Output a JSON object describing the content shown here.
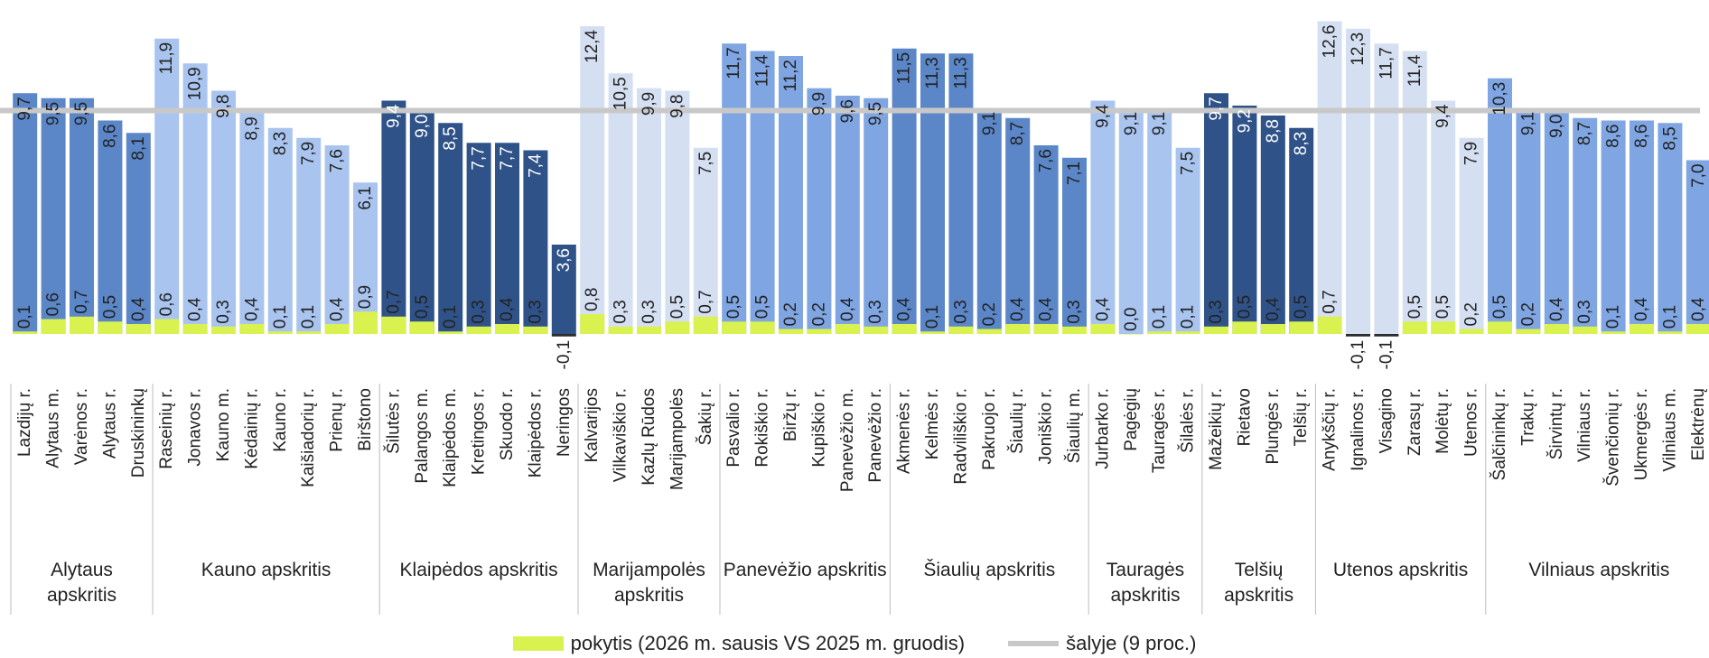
{
  "chart_data": {
    "type": "bar",
    "reference": {
      "label": "šalyje (9 proc.)",
      "value": 9,
      "color": "#c8c8c8"
    },
    "change_series": {
      "label": "pokytis (2026 m. sausis VS 2025 m. gruodis)",
      "color": "#d9f24f"
    },
    "ylim": [
      -0.2,
      12.8
    ],
    "groups": [
      {
        "name": "Alytaus apskritis",
        "color": "#5b87c9",
        "items": [
          {
            "label": "Lazdijų r.",
            "value": 9.7,
            "change": 0.1
          },
          {
            "label": "Alytaus m.",
            "value": 9.5,
            "change": 0.6
          },
          {
            "label": "Varėnos r.",
            "value": 9.5,
            "change": 0.7
          },
          {
            "label": "Alytaus r.",
            "value": 8.6,
            "change": 0.5
          },
          {
            "label": "Druskininkų",
            "value": 8.1,
            "change": 0.4
          }
        ]
      },
      {
        "name": "Kauno apskritis",
        "color": "#a9c4ef",
        "items": [
          {
            "label": "Raseinių r.",
            "value": 11.9,
            "change": 0.6
          },
          {
            "label": "Jonavos r.",
            "value": 10.9,
            "change": 0.4
          },
          {
            "label": "Kauno m.",
            "value": 9.8,
            "change": 0.3
          },
          {
            "label": "Kėdainių r.",
            "value": 8.9,
            "change": 0.4
          },
          {
            "label": "Kauno r.",
            "value": 8.3,
            "change": 0.1
          },
          {
            "label": "Kaišiadorių r.",
            "value": 7.9,
            "change": 0.1
          },
          {
            "label": "Prienų r.",
            "value": 7.6,
            "change": 0.4
          },
          {
            "label": "Birštono",
            "value": 6.1,
            "change": 0.9
          }
        ]
      },
      {
        "name": "Klaipėdos apskritis",
        "color": "#2f5389",
        "items": [
          {
            "label": "Šilutės r.",
            "value": 9.4,
            "change": 0.7
          },
          {
            "label": "Palangos m.",
            "value": 9.0,
            "change": 0.5
          },
          {
            "label": "Klaipėdos m.",
            "value": 8.5,
            "change": 0.1
          },
          {
            "label": "Kretingos r.",
            "value": 7.7,
            "change": 0.3
          },
          {
            "label": "Skuodo r.",
            "value": 7.7,
            "change": 0.4
          },
          {
            "label": "Klaipėdos r.",
            "value": 7.4,
            "change": 0.3
          },
          {
            "label": "Neringos",
            "value": 3.6,
            "change": -0.1
          }
        ]
      },
      {
        "name": "Marijampolės apskritis",
        "color": "#d5dff2",
        "items": [
          {
            "label": "Kalvarijos",
            "value": 12.4,
            "change": 0.8
          },
          {
            "label": "Vilkaviškio r.",
            "value": 10.5,
            "change": 0.3
          },
          {
            "label": "Kazlų Rūdos",
            "value": 9.9,
            "change": 0.3
          },
          {
            "label": "Marijampolės",
            "value": 9.8,
            "change": 0.5
          },
          {
            "label": "Šakių r.",
            "value": 7.5,
            "change": 0.7
          }
        ]
      },
      {
        "name": "Panevėžio apskritis",
        "color": "#7fa6e3",
        "items": [
          {
            "label": "Pasvalio r.",
            "value": 11.7,
            "change": 0.5
          },
          {
            "label": "Rokiškio r.",
            "value": 11.4,
            "change": 0.5
          },
          {
            "label": "Biržų r.",
            "value": 11.2,
            "change": 0.2
          },
          {
            "label": "Kupiškio r.",
            "value": 9.9,
            "change": 0.2
          },
          {
            "label": "Panevėžio m.",
            "value": 9.6,
            "change": 0.4
          },
          {
            "label": "Panevėžio r.",
            "value": 9.5,
            "change": 0.3
          }
        ]
      },
      {
        "name": "Šiaulių apskritis",
        "color": "#5b87c9",
        "items": [
          {
            "label": "Akmenės r.",
            "value": 11.5,
            "change": 0.4
          },
          {
            "label": "Kelmės r.",
            "value": 11.3,
            "change": 0.1
          },
          {
            "label": "Radviliškio r.",
            "value": 11.3,
            "change": 0.3
          },
          {
            "label": "Pakruojo r.",
            "value": 9.1,
            "change": 0.2
          },
          {
            "label": "Šiaulių r.",
            "value": 8.7,
            "change": 0.4
          },
          {
            "label": "Joniškio r.",
            "value": 7.6,
            "change": 0.4
          },
          {
            "label": "Šiaulių m.",
            "value": 7.1,
            "change": 0.3
          }
        ]
      },
      {
        "name": "Tauragės apskritis",
        "color": "#a9c4ef",
        "items": [
          {
            "label": "Jurbarko r.",
            "value": 9.4,
            "change": 0.4
          },
          {
            "label": "Pagėgių",
            "value": 9.1,
            "change": 0.0
          },
          {
            "label": "Tauragės r.",
            "value": 9.1,
            "change": 0.1
          },
          {
            "label": "Šilalės r.",
            "value": 7.5,
            "change": 0.1
          }
        ]
      },
      {
        "name": "Telšių apskritis",
        "color": "#2f5389",
        "items": [
          {
            "label": "Mažeikių r.",
            "value": 9.7,
            "change": 0.3
          },
          {
            "label": "Rietavo",
            "value": 9.2,
            "change": 0.5
          },
          {
            "label": "Plungės r.",
            "value": 8.8,
            "change": 0.4
          },
          {
            "label": "Telšių r.",
            "value": 8.3,
            "change": 0.5
          }
        ]
      },
      {
        "name": "Utenos apskritis",
        "color": "#d5dff2",
        "items": [
          {
            "label": "Anykščių r.",
            "value": 12.6,
            "change": 0.7
          },
          {
            "label": "Ignalinos r.",
            "value": 12.3,
            "change": -0.1
          },
          {
            "label": "Visagino",
            "value": 11.7,
            "change": -0.1
          },
          {
            "label": "Zarasų r.",
            "value": 11.4,
            "change": 0.5
          },
          {
            "label": "Molėtų r.",
            "value": 9.4,
            "change": 0.5
          },
          {
            "label": "Utenos r.",
            "value": 7.9,
            "change": 0.2
          }
        ]
      },
      {
        "name": "Vilniaus apskritis",
        "color": "#7fa6e3",
        "items": [
          {
            "label": "Šalčininkų r.",
            "value": 10.3,
            "change": 0.5
          },
          {
            "label": "Trakų r.",
            "value": 9.1,
            "change": 0.2
          },
          {
            "label": "Širvintų r.",
            "value": 9.0,
            "change": 0.4
          },
          {
            "label": "Vilniaus r.",
            "value": 8.7,
            "change": 0.3
          },
          {
            "label": "Švenčionių r.",
            "value": 8.6,
            "change": 0.1
          },
          {
            "label": "Ukmergės r.",
            "value": 8.6,
            "change": 0.4
          },
          {
            "label": "Vilniaus m.",
            "value": 8.5,
            "change": 0.1
          },
          {
            "label": "Elektrėnų",
            "value": 7.0,
            "change": 0.4
          }
        ]
      }
    ]
  }
}
